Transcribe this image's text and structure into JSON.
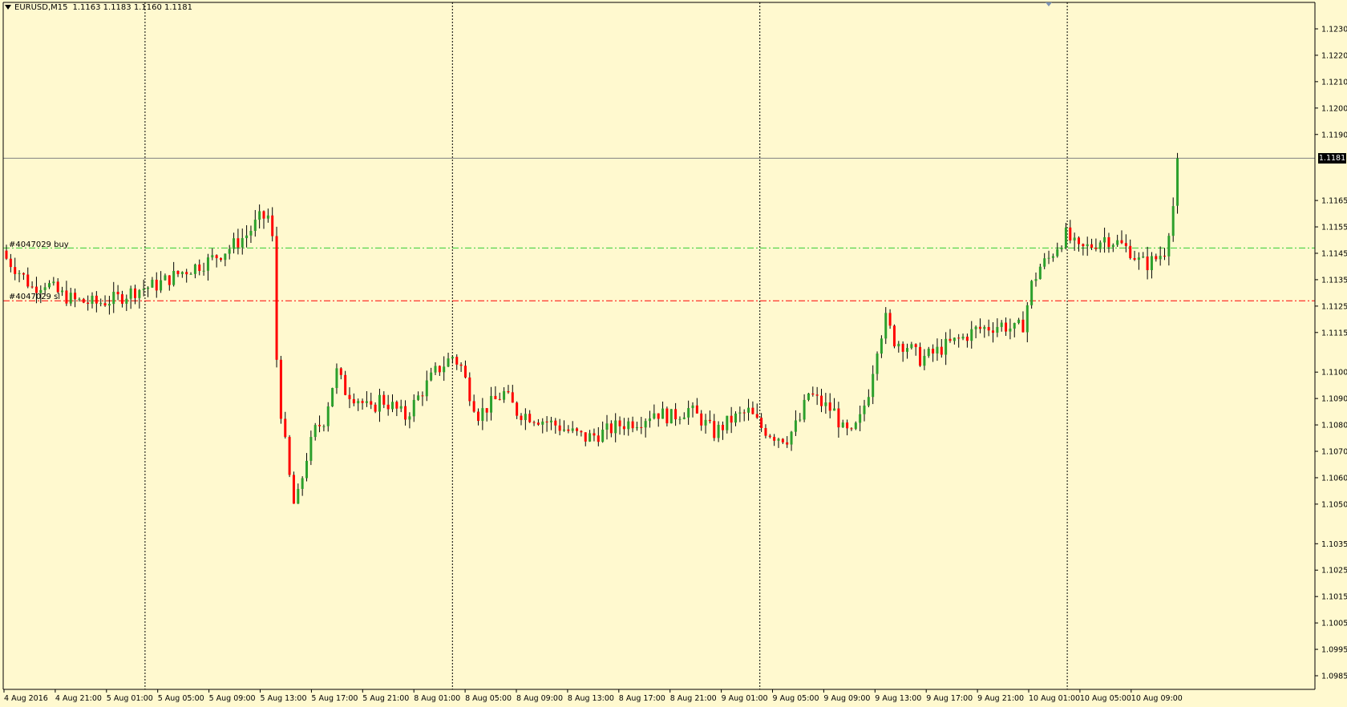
{
  "header": {
    "symbol": "EURUSD,M15",
    "ohlc": "1.1163 1.1183 1.1160 1.1181"
  },
  "current_price": "1.1181",
  "orders": {
    "buy_label": "#4047029 buy",
    "sl_label": "#4047029 sl"
  },
  "colors": {
    "background": "#fff9cf",
    "bull": "#2ca02c",
    "bear": "#ff0000",
    "buy_line": "#32cd32",
    "sl_line": "#ff0000",
    "grid_separator": "#000000",
    "axis": "#000000"
  },
  "chart_data": {
    "type": "candlestick",
    "symbol": "EURUSD",
    "timeframe": "M15",
    "ylim": [
      1.098,
      1.1236
    ],
    "y_ticks": [
      "1.1230",
      "1.1220",
      "1.1210",
      "1.1200",
      "1.1190",
      "1.1165",
      "1.1155",
      "1.1145",
      "1.1135",
      "1.1125",
      "1.1115",
      "1.1100",
      "1.1090",
      "1.1080",
      "1.1070",
      "1.1060",
      "1.1050",
      "1.1035",
      "1.1025",
      "1.1015",
      "1.1005",
      "1.0995",
      "1.0985"
    ],
    "x_ticks": [
      "4 Aug 2016",
      "4 Aug 21:00",
      "5 Aug 01:00",
      "5 Aug 05:00",
      "5 Aug 09:00",
      "5 Aug 13:00",
      "5 Aug 17:00",
      "5 Aug 21:00",
      "8 Aug 01:00",
      "8 Aug 05:00",
      "8 Aug 09:00",
      "8 Aug 13:00",
      "8 Aug 17:00",
      "8 Aug 21:00",
      "9 Aug 01:00",
      "9 Aug 05:00",
      "9 Aug 09:00",
      "9 Aug 13:00",
      "9 Aug 17:00",
      "9 Aug 21:00",
      "10 Aug 01:00",
      "10 Aug 05:00",
      "10 Aug 09:00"
    ],
    "horizontal_lines": [
      {
        "label": "#4047029 buy",
        "value": 1.1147,
        "style": "dash-dot",
        "color": "#32cd32"
      },
      {
        "label": "#4047029 sl",
        "value": 1.1127,
        "style": "dash-dot",
        "color": "#ff0000"
      },
      {
        "value": 1.1181,
        "style": "solid",
        "color": "#808080"
      }
    ],
    "day_separators": [
      "4 Aug 21:00",
      "5 Aug 21:00",
      "8 Aug 21:00",
      "9 Aug 21:00"
    ],
    "close_path": [
      [
        0,
        1.1143
      ],
      [
        3,
        1.1138
      ],
      [
        6,
        1.1132
      ],
      [
        9,
        1.1134
      ],
      [
        12,
        1.113
      ],
      [
        16,
        1.1127
      ],
      [
        21,
        1.1126
      ],
      [
        26,
        1.1128
      ],
      [
        30,
        1.1131
      ],
      [
        35,
        1.1133
      ],
      [
        41,
        1.1138
      ],
      [
        47,
        1.1142
      ],
      [
        52,
        1.1147
      ],
      [
        56,
        1.1152
      ],
      [
        59,
        1.1158
      ],
      [
        61,
        1.1159
      ],
      [
        62,
        1.115
      ],
      [
        63,
        1.1105
      ],
      [
        64,
        1.1085
      ],
      [
        66,
        1.106
      ],
      [
        67,
        1.105
      ],
      [
        68,
        1.1053
      ],
      [
        70,
        1.1068
      ],
      [
        72,
        1.1078
      ],
      [
        74,
        1.1082
      ],
      [
        76,
        1.1095
      ],
      [
        77,
        1.11
      ],
      [
        79,
        1.1093
      ],
      [
        82,
        1.109
      ],
      [
        85,
        1.1085
      ],
      [
        87,
        1.109
      ],
      [
        90,
        1.1087
      ],
      [
        93,
        1.1083
      ],
      [
        97,
        1.1093
      ],
      [
        100,
        1.11
      ],
      [
        104,
        1.1106
      ],
      [
        106,
        1.1102
      ],
      [
        108,
        1.1092
      ],
      [
        110,
        1.1084
      ],
      [
        113,
        1.1088
      ],
      [
        116,
        1.1092
      ],
      [
        119,
        1.1085
      ],
      [
        123,
        1.1083
      ],
      [
        128,
        1.108
      ],
      [
        132,
        1.1077
      ],
      [
        135,
        1.1075
      ],
      [
        139,
        1.1077
      ],
      [
        143,
        1.108
      ],
      [
        148,
        1.1082
      ],
      [
        151,
        1.1085
      ],
      [
        155,
        1.1083
      ],
      [
        159,
        1.1086
      ],
      [
        162,
        1.1082
      ],
      [
        165,
        1.1077
      ],
      [
        169,
        1.1082
      ],
      [
        173,
        1.1085
      ],
      [
        176,
        1.1079
      ],
      [
        179,
        1.1076
      ],
      [
        182,
        1.1075
      ],
      [
        185,
        1.1082
      ],
      [
        187,
        1.1092
      ],
      [
        190,
        1.1088
      ],
      [
        193,
        1.1085
      ],
      [
        195,
        1.1078
      ],
      [
        197,
        1.1076
      ],
      [
        199,
        1.1082
      ],
      [
        201,
        1.1093
      ],
      [
        203,
        1.111
      ],
      [
        205,
        1.112
      ],
      [
        207,
        1.1112
      ],
      [
        210,
        1.111
      ],
      [
        213,
        1.1105
      ],
      [
        216,
        1.1107
      ],
      [
        219,
        1.111
      ],
      [
        223,
        1.1113
      ],
      [
        226,
        1.1116
      ],
      [
        229,
        1.1117
      ],
      [
        232,
        1.1118
      ],
      [
        235,
        1.1116
      ],
      [
        237,
        1.1118
      ],
      [
        239,
        1.1133
      ],
      [
        241,
        1.114
      ],
      [
        243,
        1.1143
      ],
      [
        245,
        1.1148
      ],
      [
        247,
        1.1152
      ],
      [
        250,
        1.1146
      ],
      [
        253,
        1.1148
      ],
      [
        256,
        1.1151
      ],
      [
        259,
        1.1149
      ],
      [
        262,
        1.1146
      ],
      [
        264,
        1.1142
      ],
      [
        266,
        1.1141
      ],
      [
        268,
        1.1143
      ],
      [
        270,
        1.1146
      ],
      [
        272,
        1.1163
      ],
      [
        273,
        1.1181
      ]
    ],
    "last_bar": {
      "open": 1.1163,
      "high": 1.1183,
      "low": 1.116,
      "close": 1.1181
    }
  }
}
